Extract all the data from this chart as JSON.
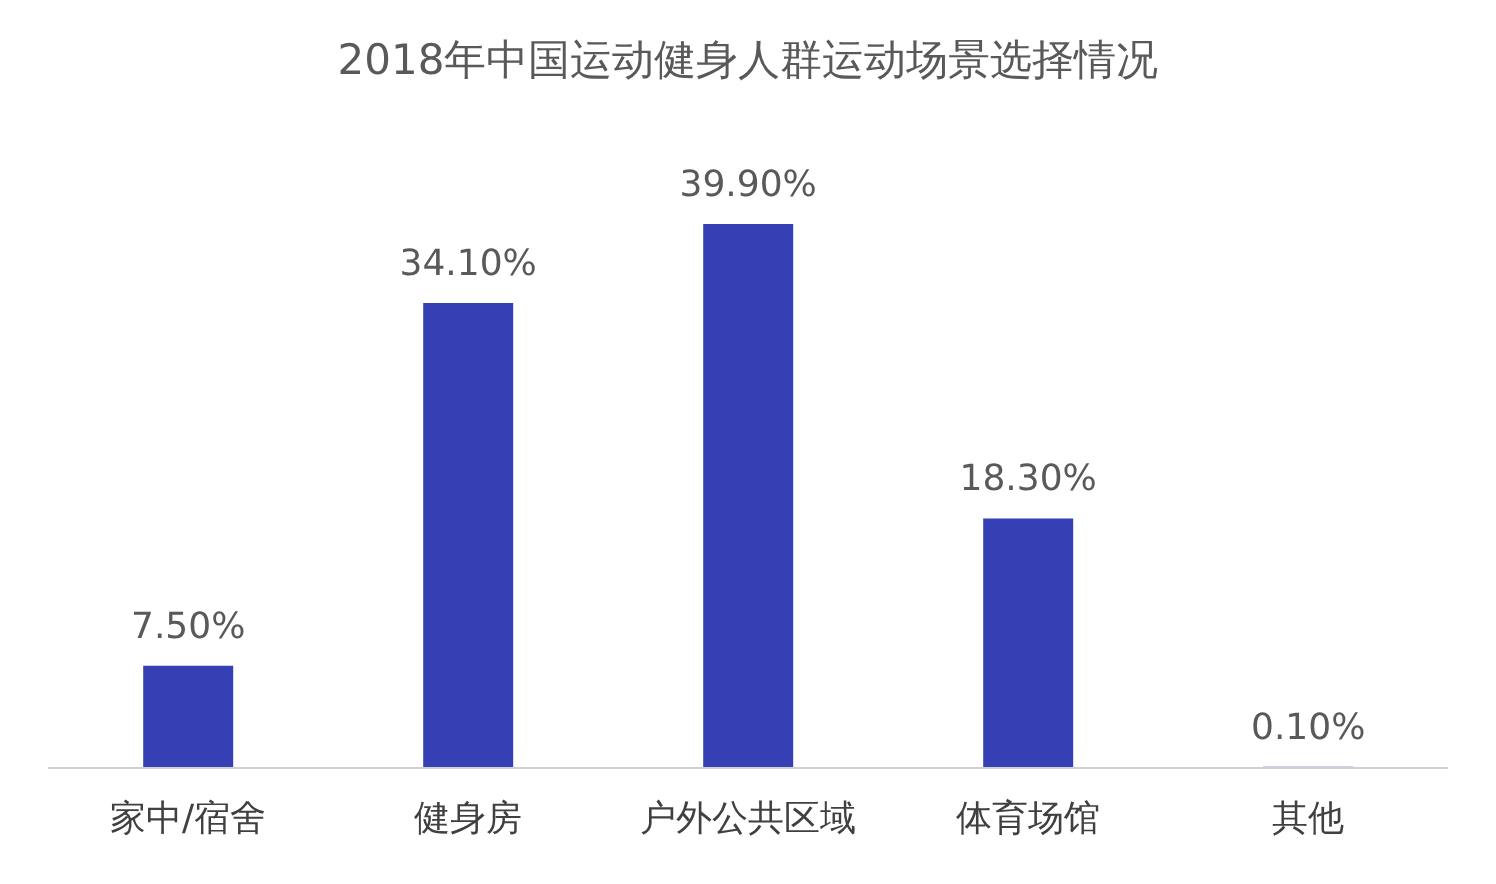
{
  "chart_data": {
    "type": "bar",
    "title": "2018年中国运动健身人群运动场景选择情况",
    "categories": [
      "家中/宿舍",
      "健身房",
      "户外公共区域",
      "体育场馆",
      "其他"
    ],
    "values": [
      7.5,
      34.1,
      39.9,
      18.3,
      0.1
    ],
    "value_labels": [
      "7.50%",
      "34.10%",
      "39.90%",
      "18.30%",
      "0.10%"
    ],
    "color": "#3640b4",
    "grid": false,
    "legend": false
  }
}
